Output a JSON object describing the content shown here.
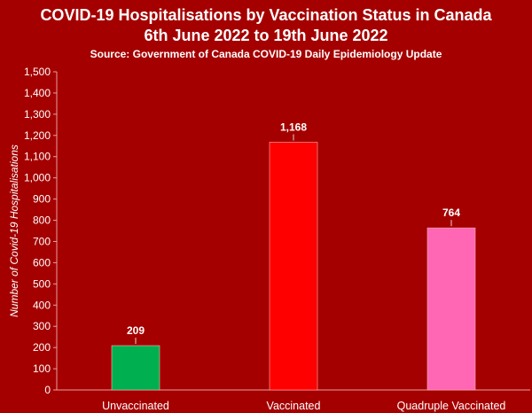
{
  "chart_data": {
    "type": "bar",
    "title_lines": [
      "COVID-19 Hospitalisations by Vaccination Status in Canada",
      "6th June 2022 to 19th June 2022"
    ],
    "subtitle": "Source: Government of Canada COVID-19 Daily Epidemiology Update",
    "ylabel": "Number of Covid-19 Hospitalisations",
    "xlabel": "",
    "categories": [
      "Unvaccinated",
      "Vaccinated",
      "Quadruple Vaccinated"
    ],
    "values": [
      209,
      1168,
      764
    ],
    "value_labels": [
      "209",
      "1,168",
      "764"
    ],
    "ylim": [
      0,
      1500
    ],
    "yticks": [
      "0",
      "100",
      "200",
      "300",
      "400",
      "500",
      "600",
      "700",
      "800",
      "900",
      "1,000",
      "1,100",
      "1,200",
      "1,300",
      "1,400",
      "1,500"
    ],
    "grid": false,
    "legend": "none",
    "colors": [
      "#00b050",
      "#ff0000",
      "#ff66b3"
    ],
    "background": "#a50000"
  }
}
